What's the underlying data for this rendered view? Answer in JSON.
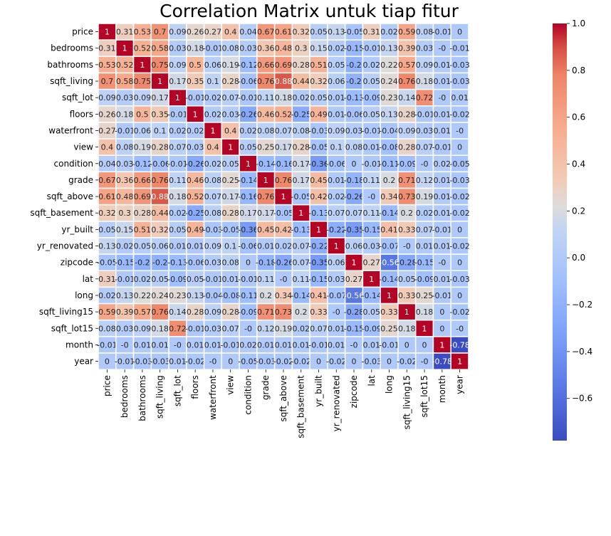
{
  "chart_data": {
    "type": "heatmap",
    "title": "Correlation Matrix untuk tiap fitur",
    "labels": [
      "price",
      "bedrooms",
      "bathrooms",
      "sqft_living",
      "sqft_lot",
      "floors",
      "waterfront",
      "view",
      "condition",
      "grade",
      "sqft_above",
      "sqft_basement",
      "yr_built",
      "yr_renovated",
      "zipcode",
      "lat",
      "long",
      "sqft_living15",
      "sqft_lot15",
      "month",
      "year"
    ],
    "cell_labels": [
      [
        "1",
        "0.31",
        "0.53",
        "0.7",
        "0.09",
        "0.26",
        "0.27",
        "0.4",
        "0.04",
        "0.67",
        "0.61",
        "0.32",
        "0.05",
        "0.13",
        "-0.05",
        "0.31",
        "0.02",
        "0.59",
        "0.08",
        "-0.01",
        "0"
      ],
      [
        "0.31",
        "1",
        "0.52",
        "0.58",
        "0.03",
        "0.18",
        "-0.01",
        "0.08",
        "0.03",
        "0.36",
        "0.48",
        "0.3",
        "0.15",
        "0.02",
        "-0.15",
        "-0.01",
        "0.13",
        "0.39",
        "0.03",
        "-0",
        "-0.01"
      ],
      [
        "0.53",
        "0.52",
        "1",
        "0.75",
        "0.09",
        "0.5",
        "0.06",
        "0.19",
        "-0.12",
        "0.66",
        "0.69",
        "0.28",
        "0.51",
        "0.05",
        "-0.2",
        "0.02",
        "0.22",
        "0.57",
        "0.09",
        "0.01",
        "-0.03"
      ],
      [
        "0.7",
        "0.58",
        "0.75",
        "1",
        "0.17",
        "0.35",
        "0.1",
        "0.28",
        "-0.06",
        "0.76",
        "0.88",
        "0.44",
        "0.32",
        "0.06",
        "-0.2",
        "0.05",
        "0.24",
        "0.76",
        "0.18",
        "0.01",
        "-0.03"
      ],
      [
        "0.09",
        "0.03",
        "0.09",
        "0.17",
        "1",
        "-0.01",
        "0.02",
        "0.07",
        "-0.01",
        "0.11",
        "0.18",
        "0.02",
        "0.05",
        "0.01",
        "-0.13",
        "-0.09",
        "0.23",
        "0.14",
        "0.72",
        "-0",
        "0.01"
      ],
      [
        "0.26",
        "0.18",
        "0.5",
        "0.35",
        "-0.01",
        "1",
        "0.02",
        "0.03",
        "-0.26",
        "0.46",
        "0.52",
        "-0.25",
        "0.49",
        "0.01",
        "-0.06",
        "0.05",
        "0.13",
        "0.28",
        "-0.01",
        "0.01",
        "-0.02"
      ],
      [
        "0.27",
        "-0.01",
        "0.06",
        "0.1",
        "0.02",
        "0.02",
        "1",
        "0.4",
        "0.02",
        "0.08",
        "0.07",
        "0.08",
        "-0.03",
        "0.09",
        "0.03",
        "-0.01",
        "-0.04",
        "0.09",
        "0.03",
        "0.01",
        "-0"
      ],
      [
        "0.4",
        "0.08",
        "0.19",
        "0.28",
        "0.07",
        "0.03",
        "0.4",
        "1",
        "0.05",
        "0.25",
        "0.17",
        "0.28",
        "-0.05",
        "0.1",
        "0.08",
        "0.01",
        "-0.08",
        "0.28",
        "0.07",
        "-0.01",
        "0"
      ],
      [
        "0.04",
        "0.03",
        "-0.12",
        "-0.06",
        "-0.01",
        "-0.26",
        "0.02",
        "0.05",
        "1",
        "-0.14",
        "-0.16",
        "0.17",
        "-0.36",
        "-0.06",
        "0",
        "-0.01",
        "-0.11",
        "-0.09",
        "-0",
        "0.02",
        "-0.05"
      ],
      [
        "0.67",
        "0.36",
        "0.66",
        "0.76",
        "0.11",
        "0.46",
        "0.08",
        "0.25",
        "-0.14",
        "1",
        "0.76",
        "0.17",
        "0.45",
        "0.01",
        "-0.18",
        "0.11",
        "0.2",
        "0.71",
        "0.12",
        "0.01",
        "-0.03"
      ],
      [
        "0.61",
        "0.48",
        "0.69",
        "0.88",
        "0.18",
        "0.52",
        "0.07",
        "0.17",
        "-0.16",
        "0.76",
        "1",
        "-0.05",
        "0.42",
        "0.02",
        "-0.26",
        "-0",
        "0.34",
        "0.73",
        "0.19",
        "0.01",
        "-0.02"
      ],
      [
        "0.32",
        "0.3",
        "0.28",
        "0.44",
        "0.02",
        "-0.25",
        "0.08",
        "0.28",
        "0.17",
        "0.17",
        "-0.05",
        "1",
        "-0.13",
        "0.07",
        "0.07",
        "0.11",
        "-0.14",
        "0.2",
        "0.02",
        "0.01",
        "-0.02"
      ],
      [
        "0.05",
        "0.15",
        "0.51",
        "0.32",
        "0.05",
        "0.49",
        "-0.03",
        "-0.05",
        "-0.36",
        "0.45",
        "0.42",
        "-0.13",
        "1",
        "-0.22",
        "-0.35",
        "-0.15",
        "0.41",
        "0.33",
        "0.07",
        "-0.01",
        "0"
      ],
      [
        "0.13",
        "0.02",
        "0.05",
        "0.06",
        "0.01",
        "0.01",
        "0.09",
        "0.1",
        "-0.06",
        "0.01",
        "0.02",
        "0.07",
        "-0.22",
        "1",
        "0.06",
        "0.03",
        "-0.07",
        "-0",
        "0.01",
        "0.01",
        "-0.02"
      ],
      [
        "-0.05",
        "-0.15",
        "-0.2",
        "-0.2",
        "-0.13",
        "-0.06",
        "0.03",
        "0.08",
        "0",
        "-0.18",
        "-0.26",
        "0.07",
        "-0.35",
        "0.06",
        "1",
        "0.27",
        "-0.56",
        "-0.28",
        "-0.15",
        "-0",
        "0"
      ],
      [
        "0.31",
        "-0.01",
        "0.02",
        "0.05",
        "-0.09",
        "0.05",
        "-0.01",
        "0.01",
        "-0.01",
        "0.11",
        "-0",
        "0.11",
        "-0.15",
        "0.03",
        "0.27",
        "1",
        "-0.14",
        "0.05",
        "-0.09",
        "0.01",
        "-0.03"
      ],
      [
        "0.02",
        "0.13",
        "0.22",
        "0.24",
        "0.23",
        "0.13",
        "-0.04",
        "-0.08",
        "-0.11",
        "0.2",
        "0.34",
        "-0.14",
        "0.41",
        "-0.07",
        "-0.56",
        "-0.14",
        "1",
        "0.33",
        "0.25",
        "-0.01",
        "0"
      ],
      [
        "0.59",
        "0.39",
        "0.57",
        "0.76",
        "0.14",
        "0.28",
        "0.09",
        "0.28",
        "-0.09",
        "0.71",
        "0.73",
        "0.2",
        "0.33",
        "-0",
        "-0.28",
        "0.05",
        "0.33",
        "1",
        "0.18",
        "0",
        "-0.02"
      ],
      [
        "0.08",
        "0.03",
        "0.09",
        "0.18",
        "0.72",
        "-0.01",
        "0.03",
        "0.07",
        "-0",
        "0.12",
        "0.19",
        "0.02",
        "0.07",
        "0.01",
        "-0.15",
        "-0.09",
        "0.25",
        "0.18",
        "1",
        "0",
        "-0"
      ],
      [
        "-0.01",
        "-0",
        "0.01",
        "0.01",
        "-0",
        "0.01",
        "0.01",
        "-0.01",
        "0.02",
        "0.01",
        "0.01",
        "0.01",
        "-0.01",
        "0.01",
        "-0",
        "0.01",
        "-0.01",
        "0",
        "0",
        "1",
        "-0.78"
      ],
      [
        "0",
        "-0.01",
        "-0.03",
        "-0.03",
        "0.01",
        "-0.02",
        "-0",
        "0",
        "-0.05",
        "-0.03",
        "-0.02",
        "-0.02",
        "0",
        "-0.02",
        "0",
        "-0.03",
        "0",
        "-0.02",
        "-0",
        "-0.78",
        "1"
      ]
    ],
    "colormap": "coolwarm",
    "vmin": -0.78,
    "vmax": 1.0,
    "colorbar_ticks": [
      "1.0",
      "0.8",
      "0.6",
      "0.4",
      "0.2",
      "0.0",
      "−0.2",
      "−0.4",
      "−0.6"
    ],
    "colorbar_tick_values": [
      1.0,
      0.8,
      0.6,
      0.4,
      0.2,
      0.0,
      -0.2,
      -0.4,
      -0.6
    ],
    "annotated": true,
    "grid": "white cell borders"
  }
}
